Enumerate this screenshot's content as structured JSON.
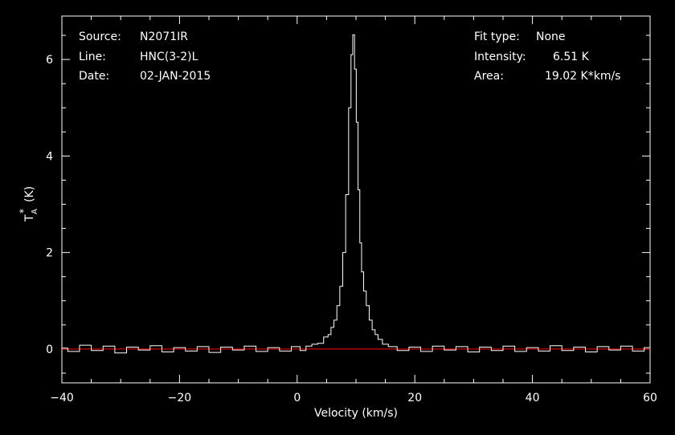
{
  "info": {
    "source_label": "Source:",
    "source_value": "N2071IR",
    "line_label": "Line:",
    "line_value": "HNC(3-2)L",
    "date_label": "Date:",
    "date_value": "02-JAN-2015",
    "fit_label": "Fit type:",
    "fit_value": "None",
    "intensity_label": "Intensity:",
    "intensity_value": "6.51 K",
    "area_label": "Area:",
    "area_value": "19.02 K*km/s"
  },
  "colors": {
    "spectrum": "#ffffff",
    "baseline": "#ff0000",
    "background": "#000000"
  },
  "chart_data": {
    "type": "line",
    "xlabel": "Velocity (km/s)",
    "ylabel_main": "T",
    "ylabel_sub": "A",
    "ylabel_sup": "*",
    "ylabel_unit": "(K)",
    "xlim": [
      -40,
      60
    ],
    "ylim": [
      -0.7,
      6.9
    ],
    "xticks": [
      -40,
      -20,
      0,
      20,
      40,
      60
    ],
    "yticks": [
      0,
      2,
      4,
      6
    ],
    "grid": false,
    "baseline_y": 0,
    "series": [
      {
        "x": [
          -40,
          -38,
          -36,
          -34,
          -32,
          -30,
          -28,
          -26,
          -24,
          -22,
          -20,
          -18,
          -16,
          -14,
          -12,
          -10,
          -8,
          -6,
          -4,
          -2,
          0,
          1,
          2,
          3,
          4,
          5,
          5.5,
          6,
          6.5,
          7,
          7.5,
          8,
          8.5,
          9,
          9.3,
          9.6,
          9.9,
          10.2,
          10.5,
          10.8,
          11.1,
          11.5,
          12,
          12.5,
          13,
          13.5,
          14,
          15,
          16,
          18,
          20,
          22,
          24,
          26,
          28,
          30,
          32,
          34,
          36,
          38,
          40,
          42,
          44,
          46,
          48,
          50,
          52,
          54,
          56,
          58,
          60
        ],
        "y": [
          0.02,
          -0.05,
          0.08,
          -0.03,
          0.06,
          -0.08,
          0.04,
          -0.02,
          0.07,
          -0.06,
          0.03,
          -0.04,
          0.05,
          -0.07,
          0.04,
          -0.02,
          0.06,
          -0.05,
          0.03,
          -0.04,
          0.05,
          -0.03,
          0.06,
          0.1,
          0.12,
          0.25,
          0.3,
          0.45,
          0.6,
          0.9,
          1.3,
          2.0,
          3.2,
          5.0,
          6.1,
          6.51,
          5.8,
          4.7,
          3.3,
          2.2,
          1.6,
          1.2,
          0.9,
          0.6,
          0.4,
          0.3,
          0.2,
          0.1,
          0.05,
          -0.03,
          0.04,
          -0.05,
          0.06,
          -0.02,
          0.05,
          -0.06,
          0.04,
          -0.03,
          0.06,
          -0.05,
          0.03,
          -0.04,
          0.07,
          -0.03,
          0.04,
          -0.06,
          0.05,
          -0.02,
          0.06,
          -0.04,
          0.03
        ]
      }
    ]
  }
}
